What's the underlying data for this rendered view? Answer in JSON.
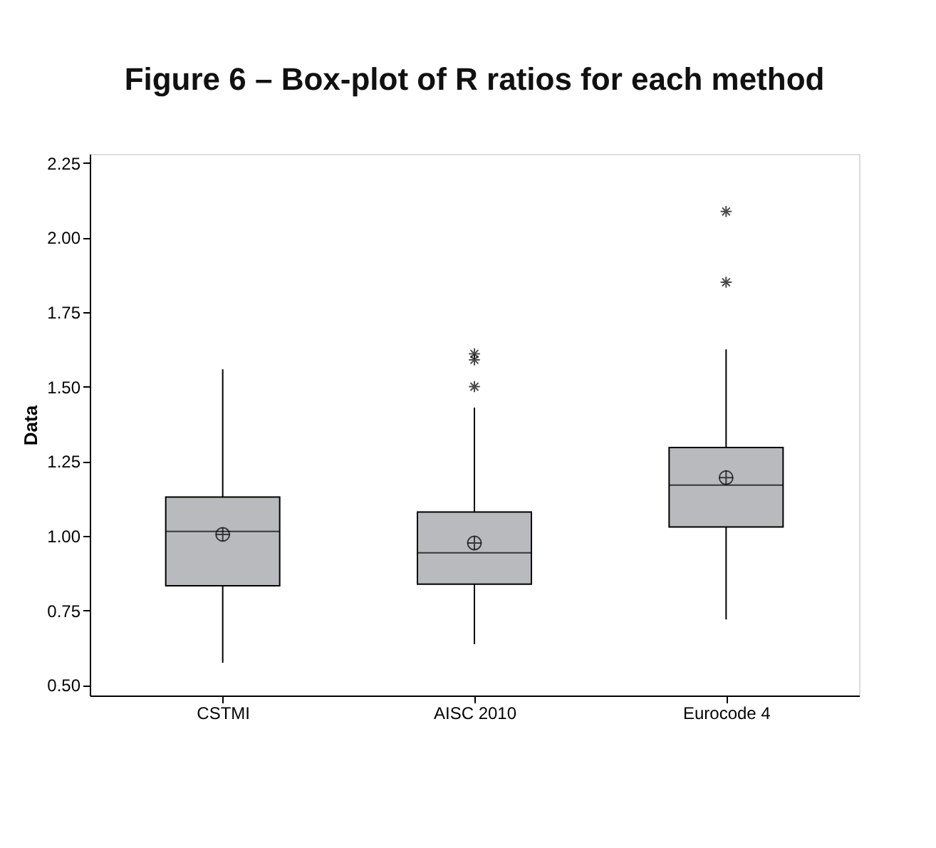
{
  "chart_data": {
    "type": "box",
    "title": "Figure 6 – Box-plot of R ratios for each method",
    "ylabel": "Data",
    "categories": [
      "CSTMI",
      "AISC 2010",
      "Eurocode 4"
    ],
    "boxes": [
      {
        "low": 0.575,
        "q1": 0.833,
        "median": 1.015,
        "q3": 1.13,
        "high": 1.558,
        "mean": 1.005
      },
      {
        "low": 0.637,
        "q1": 0.838,
        "median": 0.943,
        "q3": 1.08,
        "high": 1.43,
        "mean": 0.976,
        "outliers": [
          1.61,
          1.59,
          1.5
        ]
      },
      {
        "low": 0.72,
        "q1": 1.03,
        "median": 1.17,
        "q3": 1.296,
        "high": 1.625,
        "mean": 1.195,
        "outliers": [
          2.087,
          1.85
        ]
      }
    ],
    "color": "#b8babd",
    "ylim": [
      0.465,
      2.28
    ],
    "yticks": [
      {
        "value": 0.5,
        "label": "0.50"
      },
      {
        "value": 0.75,
        "label": "0.75"
      },
      {
        "value": 1.0,
        "label": "1.00"
      },
      {
        "value": 1.25,
        "label": "1.25"
      },
      {
        "value": 1.5,
        "label": "1.50"
      },
      {
        "value": 1.75,
        "label": "1.75"
      },
      {
        "value": 2.0,
        "label": "2.00"
      },
      {
        "value": 2.25,
        "label": "2.25"
      }
    ],
    "grid": false
  }
}
